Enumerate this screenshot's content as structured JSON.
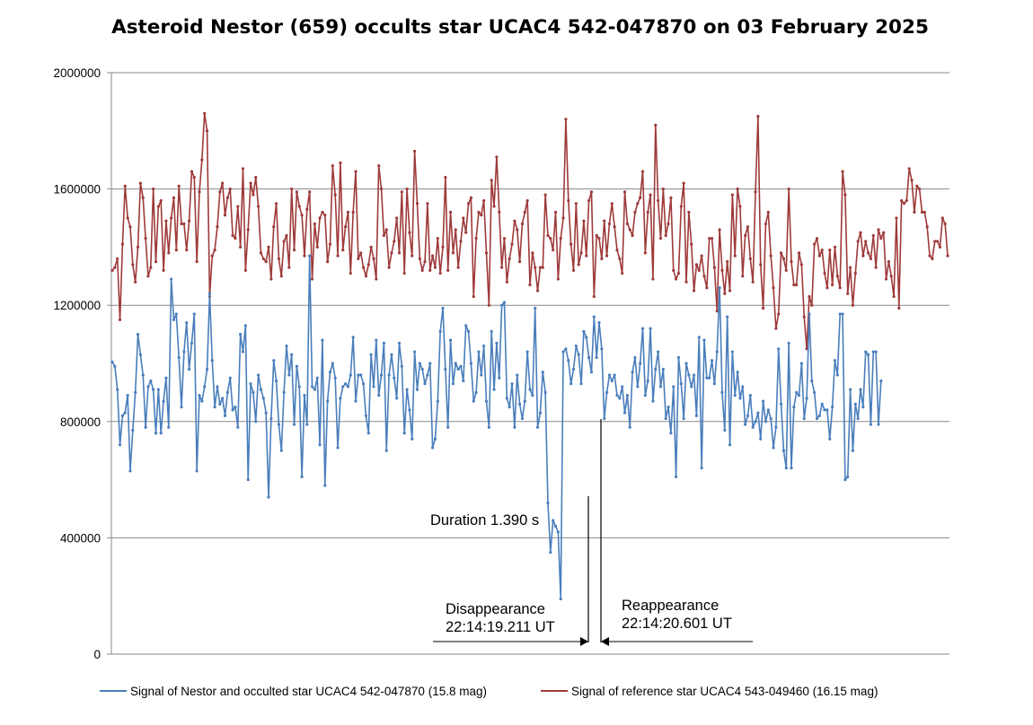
{
  "chart_data": {
    "type": "line",
    "title": "Asteroid Nestor (659) occults star UCAC4 542-047870 on 03 February 2025",
    "xlabel": "",
    "ylabel": "",
    "ylim": [
      0,
      2000000
    ],
    "yticks": [
      0,
      400000,
      800000,
      1200000,
      1600000,
      2000000
    ],
    "ytick_labels": [
      "0",
      "400000",
      "800000",
      "1200000",
      "1600000",
      "2000000"
    ],
    "grid": true,
    "legend_position": "bottom",
    "series": [
      {
        "name": "Signal of Nestor and occulted star UCAC4 542-047870 (15.8 mag)",
        "color": "#4a7ebb",
        "values": [
          1005000,
          990000,
          910000,
          720000,
          820000,
          830000,
          890000,
          630000,
          770000,
          900000,
          1100000,
          1030000,
          960000,
          780000,
          920000,
          940000,
          910000,
          760000,
          910000,
          760000,
          870000,
          950000,
          780000,
          1290000,
          1150000,
          1170000,
          1020000,
          850000,
          1040000,
          1140000,
          980000,
          1070000,
          1170000,
          630000,
          890000,
          870000,
          920000,
          980000,
          1240000,
          1010000,
          850000,
          920000,
          860000,
          880000,
          820000,
          900000,
          950000,
          840000,
          850000,
          780000,
          1100000,
          1040000,
          1130000,
          600000,
          930000,
          900000,
          800000,
          960000,
          910000,
          880000,
          830000,
          540000,
          810000,
          1010000,
          940000,
          790000,
          700000,
          900000,
          1060000,
          960000,
          1030000,
          790000,
          990000,
          920000,
          610000,
          890000,
          790000,
          1370000,
          920000,
          910000,
          950000,
          720000,
          1080000,
          580000,
          870000,
          970000,
          1000000,
          950000,
          710000,
          880000,
          920000,
          930000,
          920000,
          960000,
          1090000,
          870000,
          960000,
          960000,
          930000,
          820000,
          760000,
          1030000,
          920000,
          1080000,
          890000,
          960000,
          1070000,
          700000,
          960000,
          1030000,
          950000,
          880000,
          1070000,
          990000,
          760000,
          910000,
          840000,
          740000,
          1040000,
          910000,
          1000000,
          980000,
          930000,
          960000,
          1000000,
          710000,
          740000,
          870000,
          1110000,
          1190000,
          980000,
          780000,
          1080000,
          930000,
          1000000,
          980000,
          990000,
          940000,
          1130000,
          1110000,
          1000000,
          870000,
          900000,
          1040000,
          960000,
          1060000,
          870000,
          780000,
          1110000,
          910000,
          1070000,
          950000,
          1200000,
          1210000,
          880000,
          850000,
          930000,
          780000,
          960000,
          860000,
          810000,
          870000,
          1040000,
          910000,
          890000,
          1190000,
          780000,
          830000,
          970000,
          900000,
          520000,
          350000,
          460000,
          440000,
          420000,
          190000,
          1040000,
          1050000,
          1010000,
          930000,
          980000,
          1060000,
          1030000,
          930000,
          1110000,
          1090000,
          1020000,
          970000,
          1160000,
          1020000,
          1140000,
          1050000,
          810000,
          900000,
          960000,
          940000,
          960000,
          890000,
          880000,
          920000,
          830000,
          890000,
          780000,
          970000,
          1020000,
          920000,
          1000000,
          1120000,
          890000,
          940000,
          1120000,
          870000,
          980000,
          1040000,
          920000,
          980000,
          810000,
          850000,
          760000,
          920000,
          610000,
          1020000,
          930000,
          810000,
          1000000,
          960000,
          920000,
          960000,
          820000,
          1090000,
          640000,
          1080000,
          950000,
          950000,
          1010000,
          930000,
          1040000,
          1260000,
          900000,
          770000,
          1160000,
          720000,
          1040000,
          890000,
          970000,
          880000,
          920000,
          790000,
          820000,
          890000,
          780000,
          800000,
          830000,
          740000,
          870000,
          800000,
          840000,
          810000,
          710000,
          780000,
          1050000,
          860000,
          700000,
          640000,
          1070000,
          640000,
          850000,
          900000,
          890000,
          1000000,
          810000,
          880000,
          1170000,
          940000,
          900000,
          810000,
          820000,
          860000,
          840000,
          840000,
          740000,
          850000,
          1010000,
          960000,
          1170000,
          1170000,
          600000,
          610000,
          910000,
          700000,
          860000,
          810000,
          910000,
          850000,
          1040000,
          1030000,
          790000,
          1040000,
          1040000,
          790000,
          940000
        ]
      },
      {
        "name": "Signal of reference star UCAC4 543-049460 (16.15 mag)",
        "color": "#9e3a3a",
        "values": [
          1320000,
          1330000,
          1360000,
          1150000,
          1410000,
          1610000,
          1500000,
          1470000,
          1340000,
          1280000,
          1400000,
          1620000,
          1570000,
          1430000,
          1300000,
          1330000,
          1600000,
          1350000,
          1540000,
          1560000,
          1320000,
          1490000,
          1380000,
          1500000,
          1570000,
          1390000,
          1610000,
          1480000,
          1480000,
          1390000,
          1490000,
          1660000,
          1640000,
          1350000,
          1590000,
          1700000,
          1860000,
          1800000,
          1230000,
          1370000,
          1390000,
          1470000,
          1590000,
          1620000,
          1510000,
          1570000,
          1600000,
          1440000,
          1430000,
          1540000,
          1400000,
          1670000,
          1320000,
          1460000,
          1620000,
          1580000,
          1640000,
          1540000,
          1380000,
          1360000,
          1350000,
          1400000,
          1290000,
          1470000,
          1550000,
          1360000,
          1300000,
          1420000,
          1440000,
          1330000,
          1600000,
          1390000,
          1590000,
          1540000,
          1510000,
          1370000,
          1530000,
          1590000,
          1290000,
          1480000,
          1400000,
          1500000,
          1520000,
          1510000,
          1350000,
          1410000,
          1680000,
          1580000,
          1370000,
          1690000,
          1390000,
          1470000,
          1520000,
          1310000,
          1520000,
          1660000,
          1360000,
          1380000,
          1330000,
          1300000,
          1340000,
          1400000,
          1360000,
          1290000,
          1680000,
          1600000,
          1440000,
          1460000,
          1330000,
          1380000,
          1420000,
          1500000,
          1380000,
          1590000,
          1310000,
          1600000,
          1450000,
          1370000,
          1730000,
          1550000,
          1360000,
          1320000,
          1350000,
          1550000,
          1320000,
          1370000,
          1330000,
          1430000,
          1310000,
          1400000,
          1640000,
          1320000,
          1520000,
          1380000,
          1460000,
          1330000,
          1420000,
          1500000,
          1450000,
          1550000,
          1570000,
          1230000,
          1430000,
          1520000,
          1510000,
          1560000,
          1380000,
          1200000,
          1630000,
          1540000,
          1710000,
          1520000,
          1330000,
          1430000,
          1280000,
          1360000,
          1410000,
          1490000,
          1460000,
          1350000,
          1480000,
          1520000,
          1560000,
          1270000,
          1380000,
          1330000,
          1250000,
          1330000,
          1330000,
          1580000,
          1440000,
          1430000,
          1390000,
          1520000,
          1290000,
          1430000,
          1500000,
          1840000,
          1560000,
          1410000,
          1320000,
          1550000,
          1340000,
          1380000,
          1490000,
          1370000,
          1560000,
          1590000,
          1230000,
          1440000,
          1430000,
          1360000,
          1490000,
          1370000,
          1480000,
          1550000,
          1470000,
          1390000,
          1360000,
          1310000,
          1590000,
          1480000,
          1460000,
          1440000,
          1520000,
          1550000,
          1570000,
          1660000,
          1380000,
          1520000,
          1580000,
          1290000,
          1820000,
          1560000,
          1430000,
          1600000,
          1440000,
          1480000,
          1570000,
          1320000,
          1290000,
          1310000,
          1540000,
          1620000,
          1280000,
          1520000,
          1410000,
          1250000,
          1340000,
          1320000,
          1370000,
          1300000,
          1260000,
          1430000,
          1430000,
          1330000,
          1180000,
          1460000,
          1320000,
          1240000,
          1350000,
          1250000,
          1580000,
          1370000,
          1600000,
          1540000,
          1300000,
          1440000,
          1470000,
          1360000,
          1280000,
          1590000,
          1850000,
          1340000,
          1190000,
          1480000,
          1520000,
          1370000,
          1260000,
          1120000,
          1170000,
          1380000,
          1360000,
          1320000,
          1600000,
          1350000,
          1270000,
          1270000,
          1380000,
          1340000,
          1160000,
          1050000,
          1230000,
          1200000,
          1410000,
          1430000,
          1370000,
          1390000,
          1310000,
          1260000,
          1390000,
          1270000,
          1400000,
          1300000,
          1260000,
          1660000,
          1580000,
          1240000,
          1330000,
          1200000,
          1310000,
          1420000,
          1450000,
          1370000,
          1420000,
          1380000,
          1360000,
          1440000,
          1330000,
          1460000,
          1430000,
          1450000,
          1290000,
          1350000,
          1300000,
          1230000,
          1500000,
          1190000,
          1560000,
          1550000,
          1560000,
          1670000,
          1630000,
          1520000,
          1610000,
          1600000,
          1520000,
          1520000,
          1470000,
          1370000,
          1360000,
          1420000,
          1420000,
          1400000,
          1500000,
          1480000,
          1370000
        ]
      }
    ],
    "annotations": {
      "duration": "Duration 1.390 s",
      "disappearance_label": "Disappearance",
      "disappearance_time": "22:14:19.211 UT",
      "reappearance_label": "Reappearance",
      "reappearance_time": "22:14:20.601 UT"
    }
  }
}
